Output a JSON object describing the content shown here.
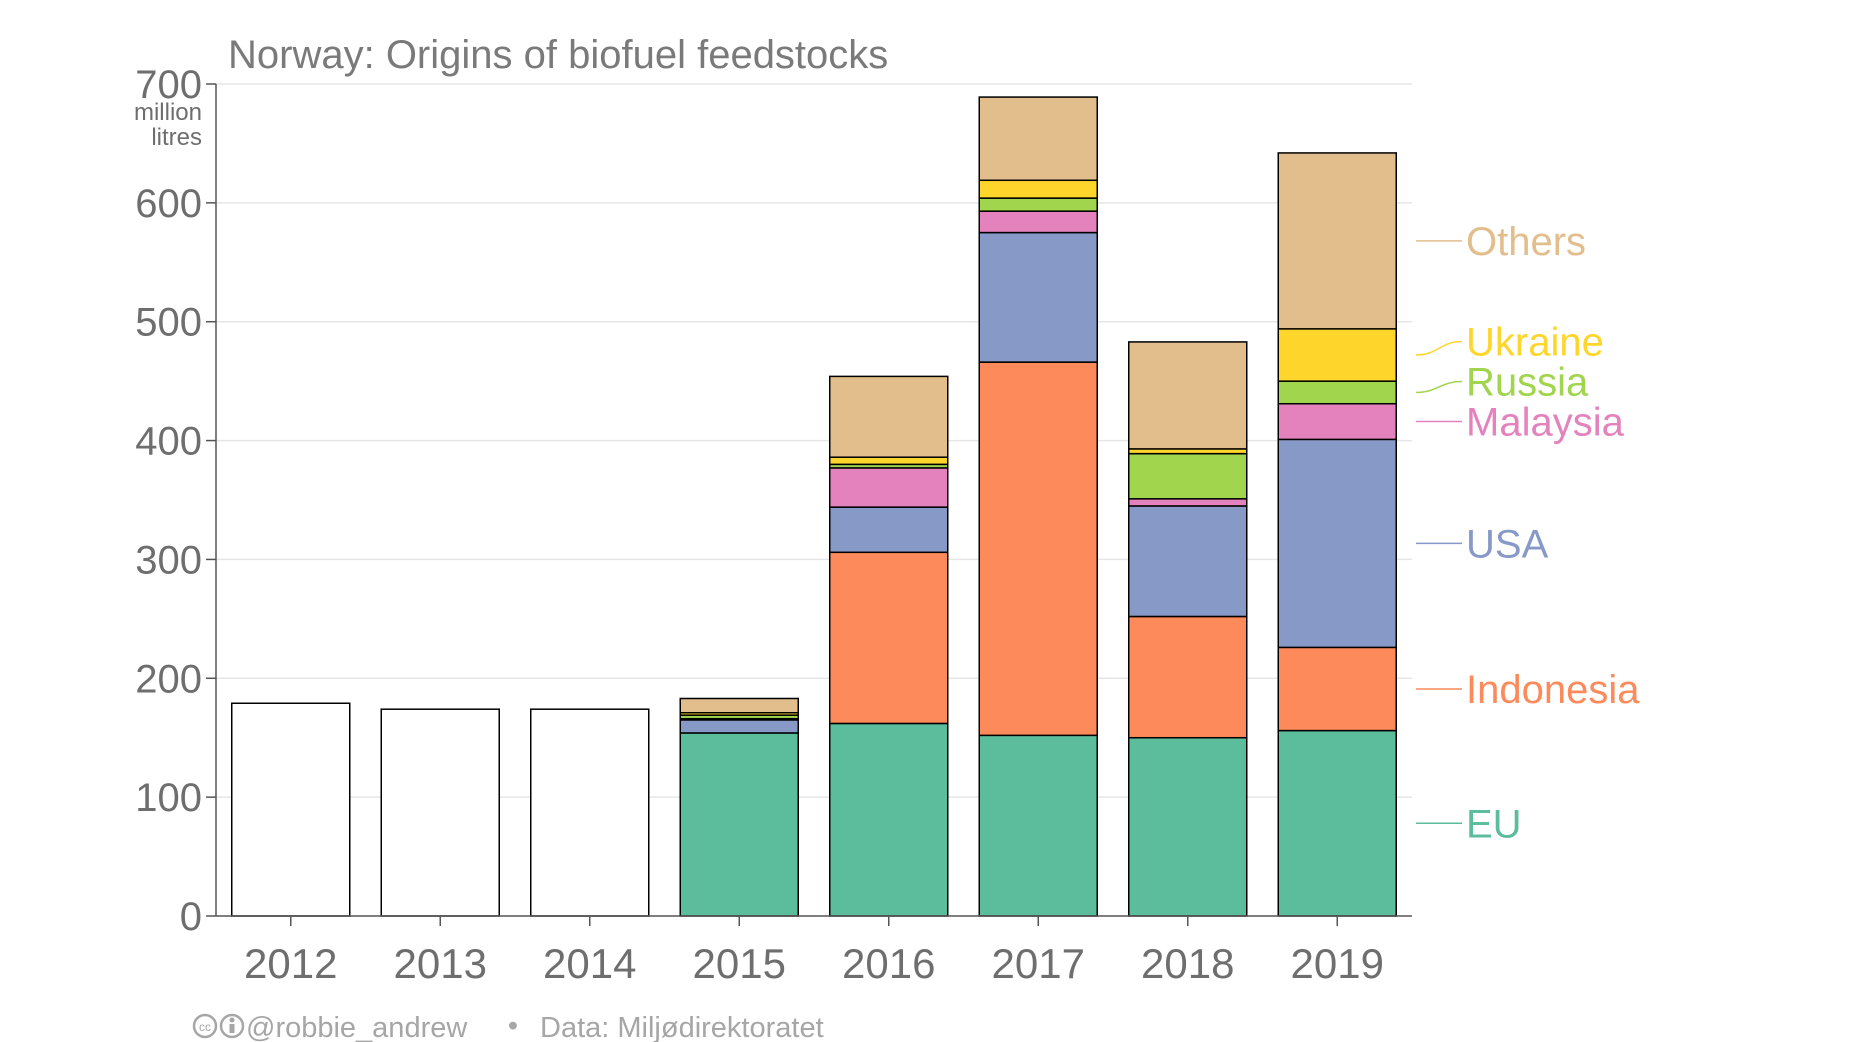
{
  "chart_data": {
    "type": "bar",
    "stacked": true,
    "title": "Norway: Origins of biofuel feedstocks",
    "ylabel": "",
    "y_unit": [
      "million",
      "litres"
    ],
    "ylim": [
      0,
      700
    ],
    "yticks": [
      0,
      100,
      200,
      300,
      400,
      500,
      600,
      700
    ],
    "grid": true,
    "legend_placement": "right (labels aligned to 2019 bar)",
    "categories": [
      "2012",
      "2013",
      "2014",
      "2015",
      "2016",
      "2017",
      "2018",
      "2019"
    ],
    "unattributed_total": {
      "description_visible": false,
      "values": [
        179,
        174,
        174,
        null,
        null,
        null,
        null,
        null
      ]
    },
    "series": [
      {
        "name": "EU",
        "color": "#5bbd9c",
        "values": [
          null,
          null,
          null,
          154,
          162,
          152,
          150,
          156
        ]
      },
      {
        "name": "Indonesia",
        "color": "#fc8a5a",
        "values": [
          null,
          null,
          null,
          0,
          144,
          314,
          102,
          70
        ]
      },
      {
        "name": "USA",
        "color": "#8799c6",
        "values": [
          null,
          null,
          null,
          11,
          38,
          109,
          93,
          175
        ]
      },
      {
        "name": "Malaysia",
        "color": "#e382bd",
        "values": [
          null,
          null,
          null,
          1,
          33,
          18,
          6,
          30
        ]
      },
      {
        "name": "Russia",
        "color": "#a1d54d",
        "values": [
          null,
          null,
          null,
          3,
          3,
          11,
          38,
          19
        ]
      },
      {
        "name": "Ukraine",
        "color": "#fed62b",
        "values": [
          null,
          null,
          null,
          2,
          6,
          15,
          4,
          44
        ]
      },
      {
        "name": "Others",
        "color": "#e2be8c",
        "values": [
          null,
          null,
          null,
          12,
          68,
          70,
          90,
          148
        ]
      }
    ]
  },
  "footer": {
    "credit": "@robbie_andrew",
    "separator": "•",
    "source": "Data: Miljødirektoratet"
  },
  "colors": {
    "axis": "#555555",
    "grid": "#e6e6e6",
    "text": "#6e6e6e",
    "footer": "#a6a6a6"
  }
}
